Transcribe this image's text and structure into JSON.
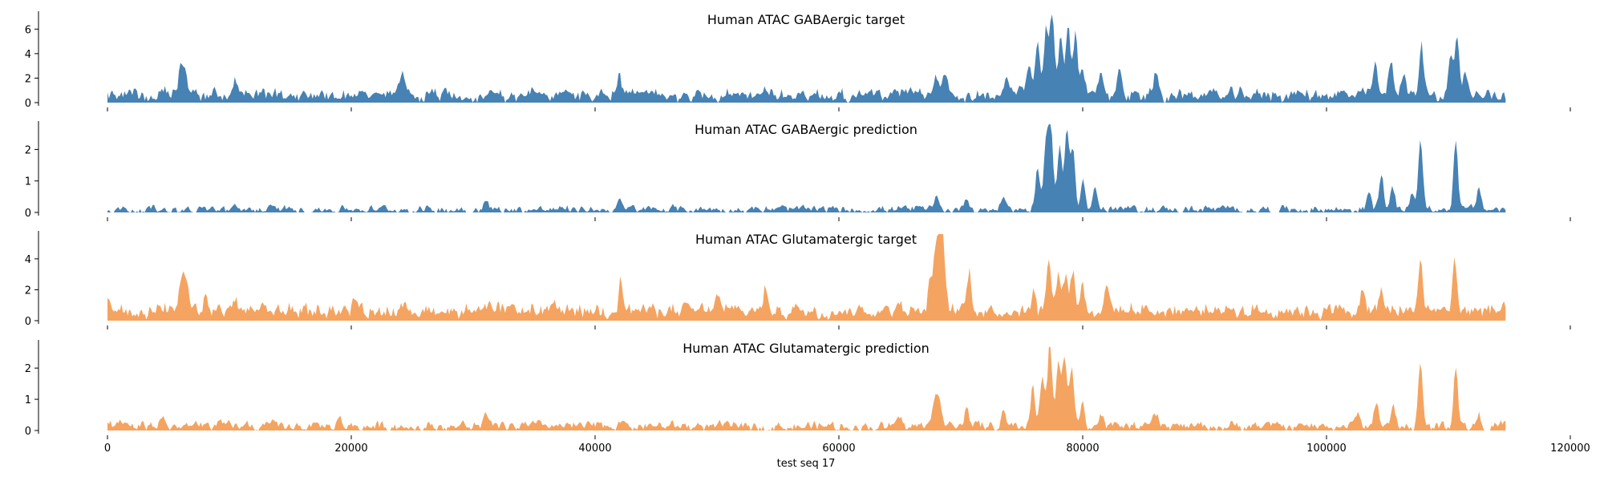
{
  "chart_data": {
    "type": "area",
    "xlabel": "test seq 17",
    "xlim": [
      0,
      120000
    ],
    "xticks": [
      0,
      20000,
      40000,
      60000,
      80000,
      100000,
      120000
    ],
    "x_data_max": 114688,
    "grid": false,
    "legend": "none",
    "panels": [
      {
        "title": "Human ATAC GABAergic target",
        "color": "#4682b4",
        "ylim": [
          0,
          7.2
        ],
        "yticks": [
          0,
          2,
          4,
          6
        ],
        "profile": {
          "baseline": 0.4,
          "noise": 0.5,
          "bumpiness": 0.7,
          "peaks": [
            [
              6000,
              2.4
            ],
            [
              6400,
              2.4
            ],
            [
              10500,
              1.5
            ],
            [
              24200,
              2.0
            ],
            [
              42000,
              2.0
            ],
            [
              68000,
              1.6
            ],
            [
              68700,
              2.3
            ],
            [
              73800,
              2.1
            ],
            [
              75600,
              3.0
            ],
            [
              76300,
              4.5
            ],
            [
              77000,
              6.3
            ],
            [
              77500,
              7.0
            ],
            [
              78200,
              4.8
            ],
            [
              78800,
              5.6
            ],
            [
              79400,
              5.3
            ],
            [
              80000,
              2.6
            ],
            [
              81500,
              2.2
            ],
            [
              83000,
              2.5
            ],
            [
              86000,
              2.3
            ],
            [
              104000,
              2.8
            ],
            [
              105300,
              3.3
            ],
            [
              106300,
              2.4
            ],
            [
              107800,
              4.3
            ],
            [
              110200,
              3.5
            ],
            [
              110700,
              5.3
            ],
            [
              111400,
              2.0
            ]
          ]
        }
      },
      {
        "title": "Human ATAC GABAergic prediction",
        "color": "#4682b4",
        "ylim": [
          0,
          2.8
        ],
        "yticks": [
          0,
          1,
          2
        ],
        "profile": {
          "baseline": 0.07,
          "noise": 0.06,
          "bumpiness": 0.2,
          "peaks": [
            [
              31000,
              0.35
            ],
            [
              42000,
              0.3
            ],
            [
              68000,
              0.4
            ],
            [
              70500,
              0.5
            ],
            [
              73500,
              0.55
            ],
            [
              76300,
              1.4
            ],
            [
              77000,
              2.1
            ],
            [
              77400,
              2.7
            ],
            [
              78100,
              2.1
            ],
            [
              78700,
              2.55
            ],
            [
              79200,
              2.0
            ],
            [
              80000,
              1.1
            ],
            [
              81000,
              0.7
            ],
            [
              103500,
              0.6
            ],
            [
              104500,
              1.2
            ],
            [
              105400,
              0.7
            ],
            [
              107000,
              0.6
            ],
            [
              107700,
              2.35
            ],
            [
              110600,
              2.3
            ],
            [
              112500,
              0.7
            ]
          ]
        }
      },
      {
        "title": "Human ATAC Glutamatergic target",
        "color": "#f4a460",
        "ylim": [
          0,
          5.6
        ],
        "yticks": [
          0,
          2,
          4
        ],
        "profile": {
          "baseline": 0.45,
          "noise": 0.45,
          "bumpiness": 0.6,
          "peaks": [
            [
              0,
              1.1
            ],
            [
              6100,
              2.4
            ],
            [
              6500,
              2.0
            ],
            [
              8000,
              1.1
            ],
            [
              10500,
              1.0
            ],
            [
              20300,
              1.2
            ],
            [
              42100,
              2.6
            ],
            [
              50000,
              1.5
            ],
            [
              54000,
              1.8
            ],
            [
              65000,
              1.3
            ],
            [
              67500,
              2.0
            ],
            [
              67900,
              4.2
            ],
            [
              68300,
              5.5
            ],
            [
              68600,
              3.5
            ],
            [
              70700,
              3.2
            ],
            [
              76000,
              2.0
            ],
            [
              77200,
              3.8
            ],
            [
              78000,
              3.2
            ],
            [
              78600,
              2.9
            ],
            [
              79200,
              3.1
            ],
            [
              80000,
              2.2
            ],
            [
              82000,
              1.9
            ],
            [
              103000,
              1.5
            ],
            [
              104500,
              1.6
            ],
            [
              107700,
              3.7
            ],
            [
              110500,
              3.6
            ]
          ]
        }
      },
      {
        "title": "Human ATAC Glutamatergic prediction",
        "color": "#f4a460",
        "ylim": [
          0,
          2.8
        ],
        "yticks": [
          0,
          1,
          2
        ],
        "profile": {
          "baseline": 0.1,
          "noise": 0.08,
          "bumpiness": 0.25,
          "peaks": [
            [
              4500,
              0.4
            ],
            [
              19000,
              0.3
            ],
            [
              31000,
              0.4
            ],
            [
              42000,
              0.3
            ],
            [
              65000,
              0.35
            ],
            [
              67800,
              0.9
            ],
            [
              68200,
              1.1
            ],
            [
              70500,
              0.9
            ],
            [
              73500,
              0.55
            ],
            [
              75900,
              1.4
            ],
            [
              76700,
              1.8
            ],
            [
              77300,
              2.75
            ],
            [
              78000,
              2.1
            ],
            [
              78500,
              2.35
            ],
            [
              79100,
              2.0
            ],
            [
              80000,
              1.0
            ],
            [
              81500,
              0.5
            ],
            [
              86000,
              0.5
            ],
            [
              102500,
              0.5
            ],
            [
              104100,
              0.95
            ],
            [
              105500,
              0.7
            ],
            [
              107700,
              2.0
            ],
            [
              110600,
              2.05
            ],
            [
              112500,
              0.45
            ]
          ]
        }
      }
    ]
  }
}
